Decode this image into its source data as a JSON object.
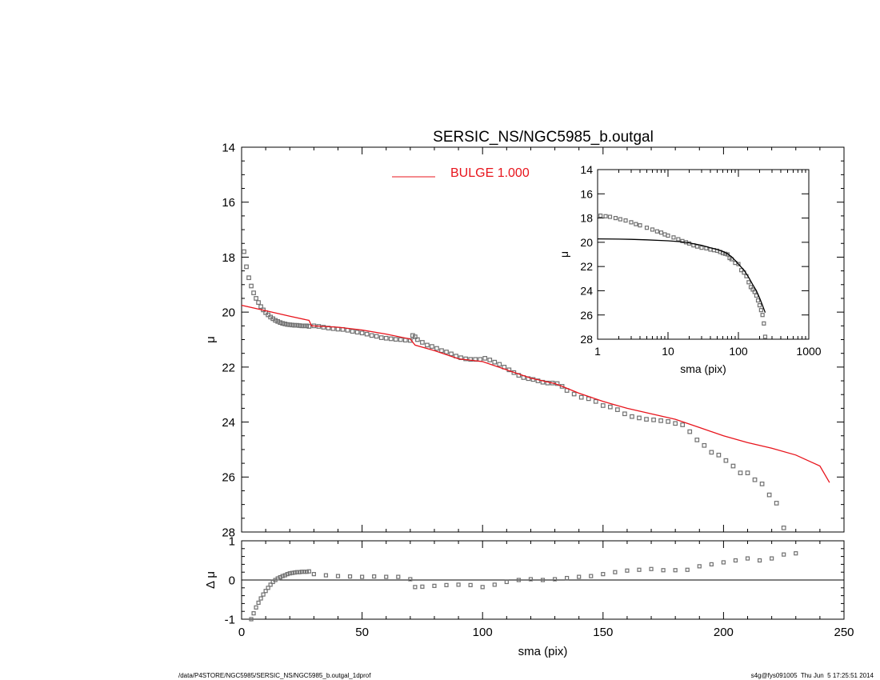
{
  "footer": {
    "left": "/data/P4STORE/NGC5985/SERSIC_NS/NGC5985_b.outgal_1dprof",
    "right": "s4g@fys091005  Thu Jun  5 17:25:51 2014"
  },
  "colors": {
    "model": "#e8141c",
    "data": "#707070",
    "axes": "#000000"
  },
  "chart_data": [
    {
      "id": "main",
      "type": "scatter",
      "title": "SERSIC_NS/NGC5985_b.outgal",
      "xlabel": "",
      "ylabel": "μ",
      "xlim": [
        0,
        250
      ],
      "ylim": [
        28,
        14
      ],
      "yticks": [
        14,
        16,
        18,
        20,
        22,
        24,
        26,
        28
      ],
      "legend": {
        "label": "BULGE  1.000",
        "placement": "top-center",
        "color": "#e8141c"
      },
      "series": [
        {
          "name": "",
          "kind": "points",
          "x": [
            1,
            2,
            3,
            4,
            5,
            6,
            7,
            8,
            9,
            10,
            11,
            12,
            13,
            14,
            15,
            16,
            17,
            18,
            19,
            20,
            21,
            22,
            23,
            24,
            25,
            26,
            27,
            28,
            30,
            32,
            34,
            36,
            38,
            40,
            42,
            44,
            46,
            48,
            50,
            52,
            54,
            56,
            58,
            60,
            62,
            64,
            66,
            68,
            70,
            71,
            72,
            73,
            75,
            77,
            79,
            81,
            83,
            85,
            87,
            89,
            91,
            93,
            95,
            97,
            99,
            101,
            103,
            105,
            107,
            109,
            111,
            113,
            115,
            117,
            119,
            121,
            123,
            125,
            127,
            129,
            131,
            133,
            135,
            138,
            141,
            144,
            147,
            150,
            153,
            156,
            159,
            162,
            165,
            168,
            171,
            174,
            177,
            180,
            183,
            186,
            189,
            192,
            195,
            198,
            201,
            204,
            207,
            210,
            213,
            216,
            219,
            222,
            225,
            228,
            231,
            234,
            237,
            240,
            244
          ],
          "y": [
            17.8,
            18.35,
            18.75,
            19.05,
            19.3,
            19.5,
            19.65,
            19.8,
            19.92,
            20.02,
            20.1,
            20.18,
            20.24,
            20.3,
            20.34,
            20.38,
            20.41,
            20.43,
            20.45,
            20.46,
            20.47,
            20.48,
            20.48,
            20.49,
            20.5,
            20.5,
            20.5,
            20.52,
            20.5,
            20.52,
            20.55,
            20.58,
            20.6,
            20.62,
            20.63,
            20.66,
            20.7,
            20.73,
            20.76,
            20.8,
            20.85,
            20.88,
            20.93,
            20.95,
            20.97,
            20.99,
            21.0,
            21.02,
            21.03,
            20.85,
            20.9,
            21.0,
            21.1,
            21.2,
            21.25,
            21.32,
            21.4,
            21.45,
            21.52,
            21.6,
            21.66,
            21.7,
            21.72,
            21.72,
            21.72,
            21.68,
            21.74,
            21.82,
            21.9,
            22.0,
            22.1,
            22.2,
            22.3,
            22.38,
            22.42,
            22.45,
            22.5,
            22.55,
            22.58,
            22.58,
            22.6,
            22.7,
            22.85,
            22.98,
            23.1,
            23.15,
            23.25,
            23.4,
            23.45,
            23.55,
            23.7,
            23.8,
            23.85,
            23.9,
            23.92,
            23.95,
            23.98,
            24.05,
            24.1,
            24.35,
            24.65,
            24.85,
            25.1,
            25.2,
            25.4,
            25.6,
            25.85,
            25.85,
            26.1,
            26.25,
            26.65,
            26.95,
            27.85,
            null,
            null,
            null,
            null,
            null,
            null
          ],
          "color": "#707070"
        },
        {
          "name": "",
          "kind": "line",
          "x": [
            0,
            10,
            20,
            28,
            29,
            40,
            50,
            60,
            70,
            72,
            80,
            90,
            100,
            110,
            120,
            130,
            133,
            140,
            150,
            160,
            170,
            180,
            190,
            200,
            210,
            220,
            230,
            240,
            244
          ],
          "y": [
            19.75,
            19.95,
            20.15,
            20.3,
            20.5,
            20.55,
            20.65,
            20.8,
            20.98,
            21.2,
            21.4,
            21.7,
            21.8,
            22.1,
            22.4,
            22.6,
            22.7,
            22.95,
            23.25,
            23.5,
            23.7,
            23.9,
            24.2,
            24.5,
            24.75,
            24.95,
            25.2,
            25.6,
            26.2
          ],
          "color": "#e8141c"
        }
      ]
    },
    {
      "id": "residual",
      "type": "scatter",
      "xlabel": "sma (pix)",
      "ylabel": "Δ μ",
      "xlim": [
        0,
        250
      ],
      "ylim": [
        -1,
        1
      ],
      "xticks": [
        0,
        50,
        100,
        150,
        200,
        250
      ],
      "yticks": [
        -1,
        0,
        1
      ],
      "zero_line": true,
      "series": [
        {
          "name": "",
          "kind": "points",
          "x": [
            4,
            5,
            6,
            7,
            8,
            9,
            10,
            11,
            12,
            13,
            14,
            15,
            16,
            17,
            18,
            19,
            20,
            21,
            22,
            23,
            24,
            25,
            26,
            27,
            28,
            30,
            35,
            40,
            45,
            50,
            55,
            60,
            65,
            70,
            72,
            75,
            80,
            85,
            90,
            95,
            100,
            105,
            110,
            115,
            120,
            125,
            130,
            135,
            140,
            145,
            150,
            155,
            160,
            165,
            170,
            175,
            180,
            185,
            190,
            195,
            200,
            205,
            210,
            215,
            220,
            225,
            230
          ],
          "y": [
            -1.0,
            -0.85,
            -0.7,
            -0.58,
            -0.47,
            -0.37,
            -0.28,
            -0.2,
            -0.12,
            -0.05,
            0.0,
            0.04,
            0.07,
            0.1,
            0.12,
            0.15,
            0.17,
            0.18,
            0.19,
            0.2,
            0.2,
            0.21,
            0.21,
            0.21,
            0.22,
            0.15,
            0.12,
            0.1,
            0.09,
            0.08,
            0.09,
            0.08,
            0.08,
            0.02,
            -0.18,
            -0.17,
            -0.15,
            -0.13,
            -0.12,
            -0.13,
            -0.18,
            -0.12,
            -0.05,
            0.0,
            0.02,
            0.0,
            0.02,
            0.05,
            0.08,
            0.1,
            0.15,
            0.2,
            0.24,
            0.26,
            0.28,
            0.25,
            0.25,
            0.26,
            0.35,
            0.4,
            0.45,
            0.5,
            0.55,
            0.5,
            0.55,
            0.65,
            0.68
          ],
          "color": "#707070"
        }
      ]
    },
    {
      "id": "inset",
      "type": "scatter",
      "xlabel": "sma (pix)",
      "ylabel": "μ",
      "xscale": "log",
      "xlim": [
        1,
        1000
      ],
      "ylim": [
        28,
        14
      ],
      "xticks": [
        1,
        10,
        100,
        1000
      ],
      "yticks": [
        14,
        16,
        18,
        20,
        22,
        24,
        26,
        28
      ],
      "series": [
        {
          "name": "",
          "kind": "points",
          "x": [
            1.1,
            1.3,
            1.5,
            1.8,
            2.1,
            2.5,
            3,
            3.5,
            4,
            5,
            6,
            7,
            8,
            9,
            10,
            12,
            14,
            16,
            18,
            20,
            23,
            26,
            30,
            35,
            40,
            45,
            50,
            55,
            60,
            65,
            70,
            75,
            80,
            90,
            100,
            110,
            120,
            130,
            140,
            150,
            160,
            170,
            180,
            190,
            200,
            210,
            220,
            230,
            240
          ],
          "y": [
            17.8,
            17.85,
            17.9,
            18.0,
            18.1,
            18.2,
            18.35,
            18.5,
            18.6,
            18.8,
            18.95,
            19.1,
            19.2,
            19.35,
            19.45,
            19.6,
            19.75,
            19.9,
            20.0,
            20.1,
            20.25,
            20.35,
            20.45,
            20.5,
            20.6,
            20.65,
            20.7,
            20.8,
            20.9,
            20.95,
            21.0,
            21.3,
            21.4,
            21.7,
            21.8,
            22.3,
            22.5,
            22.8,
            23.3,
            23.7,
            23.9,
            24.1,
            24.4,
            24.8,
            25.2,
            25.6,
            26.0,
            26.7,
            27.8
          ],
          "color": "#707070"
        },
        {
          "name": "",
          "kind": "line",
          "x": [
            1,
            2,
            3,
            5,
            8,
            10,
            15,
            20,
            30,
            40,
            50,
            60,
            70,
            80,
            90,
            100,
            120,
            140,
            160,
            180,
            200,
            220,
            240
          ],
          "y": [
            19.72,
            19.74,
            19.76,
            19.8,
            19.85,
            19.88,
            19.95,
            20.05,
            20.25,
            20.45,
            20.6,
            20.75,
            20.95,
            21.2,
            21.5,
            21.8,
            22.3,
            22.9,
            23.5,
            24.0,
            24.6,
            25.2,
            25.8
          ],
          "color": "#000000"
        }
      ]
    }
  ]
}
